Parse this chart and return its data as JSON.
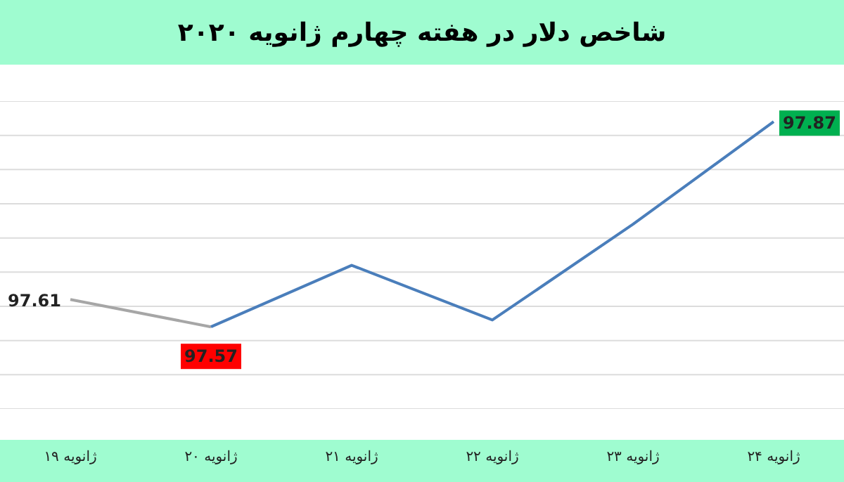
{
  "chart_data": {
    "type": "line",
    "title": "شاخص دلار در هفته چهارم ژانویه ۲۰۲۰",
    "categories": [
      "۱۹ ژانویه",
      "۲۰ ژانویه",
      "۲۱ ژانویه",
      "۲۲ ژانویه",
      "۲۳ ژانویه",
      "۲۴ ژانویه"
    ],
    "series": [
      {
        "color": "#a6a6a6",
        "values": [
          97.61,
          97.57,
          null,
          null,
          null,
          null
        ],
        "value_labels": [
          "97.61",
          null,
          null,
          null,
          null,
          null
        ]
      },
      {
        "color": "#4a7ebb",
        "values": [
          null,
          97.57,
          97.66,
          97.58,
          97.72,
          97.87
        ],
        "value_labels": [
          null,
          "97.57",
          null,
          null,
          null,
          "97.87"
        ]
      }
    ],
    "ylim": [
      97.45,
      97.9
    ],
    "yticks": [
      {
        "value": 97.45,
        "label": null
      },
      {
        "value": 97.5,
        "label": null
      },
      {
        "value": 97.55,
        "label": null
      },
      {
        "value": 97.6,
        "label": null
      },
      {
        "value": 97.65,
        "label": null
      },
      {
        "value": 97.7,
        "label": null
      },
      {
        "value": 97.75,
        "label": null
      },
      {
        "value": 97.8,
        "label": null
      },
      {
        "value": 97.85,
        "label": null
      },
      {
        "value": 97.9,
        "label": null
      }
    ],
    "grid": "y",
    "marker": "none",
    "line_style": "solid",
    "legend": false,
    "tick_labels": "x"
  }
}
